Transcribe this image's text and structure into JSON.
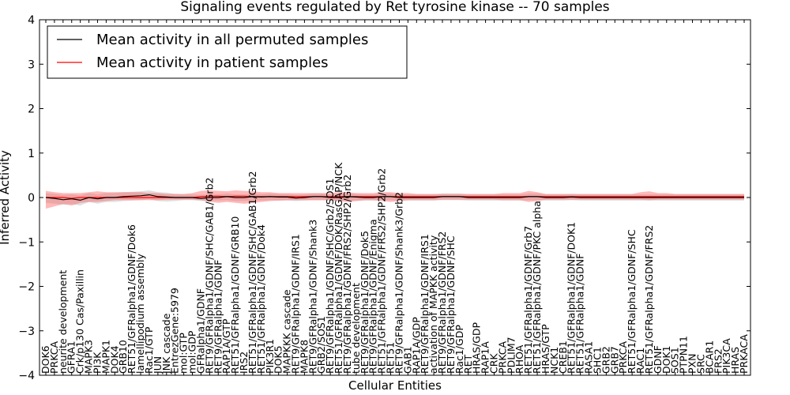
{
  "chart_data": {
    "type": "line",
    "title": "Signaling events regulated by Ret tyrosine kinase -- 70 samples",
    "xlabel": "Cellular Entities",
    "ylabel": "Inferred Activity",
    "ylim": [
      -4,
      4
    ],
    "yticks": [
      -4,
      -3,
      -2,
      -1,
      0,
      1,
      2,
      3,
      4
    ],
    "grid": false,
    "legend_position": "top-left",
    "legend": [
      {
        "label": "Mean activity in all permuted samples",
        "color": "#000000"
      },
      {
        "label": "Mean activity in patient samples",
        "color": "#ff0000"
      }
    ],
    "categories": [
      "DOK6",
      "PRKCA",
      "neurite development",
      "GFRA1",
      "Crk/p130 Cas/Paxillin",
      "MAPK3",
      "PI3K",
      "MAPK1",
      "DOK4",
      "GRB10",
      "RET51/GFRalpha1/GDNF/Dok6",
      "lamellipodium assembly",
      "Rac1/GTP",
      "JUN",
      "JNK cascade",
      "EntrezGene:5979",
      "mol:GTP",
      "mol:GDP",
      "GFRalpha1/GDNF",
      "RET9/GFRalpha1/GDNF/SHC/GAB1/Grb2",
      "RET9/GFRalpha1/GDNF",
      "RAP1A/GTP",
      "RET51/GFRalpha1/GDNF/GRB10",
      "IRS2",
      "RET51/GFRalpha1/GDNF/SHC/GAB1/Grb2",
      "RET51/GFRalpha1/GDNF/Dok4",
      "PIK3R1",
      "DOK5",
      "MAPKKK cascade",
      "RET9/GFRalpha1/GDNF/IRS1",
      "MAPK8",
      "RET9/GFRalpha1/GDNF/Shank3",
      "GRB2/SOS1",
      "RET9/GFRalpha1/GDNF/SHC/Grb2/SOS1",
      "RET51/GFRalpha1/GDNF/DOK/RasGAP/NCK",
      "RET9/GFRalpha1/GDNF/FRS2/SHP2/Grb2",
      "tube development",
      "RET9/GFRalpha1/GDNF/Dok5",
      "RET9/GFRalpha1/GDNF/Enigma",
      "RET51/GFRalpha1/GDNF/FRS2/SHP2/Grb2",
      "RET51",
      "RET9/GFRalpha1/GDNF/Shank3/Grb2",
      "GAB1",
      "RAP1A/GDP",
      "RET9/GFRalpha1/GDNF/IRS1",
      "activation of MAPKK activity",
      "RET9/GFRalpha1/GDNF/FRS2",
      "RET9/GFRalpha1/GDNF/SHC",
      "Rac1/GDP",
      "RET",
      "HRAS/GDP",
      "RAP1A",
      "CRK",
      "PRKCA",
      "PDLIM7",
      "RHOA",
      "RET51/GFRalpha1/GDNF/Grb7",
      "RET51/GFRalpha1/GDNF/PKC alpha",
      "HRAS/GTP",
      "NCK1",
      "CREB1",
      "RET51/GFRalpha1/GDNF/DOK1",
      "RET51/GFRalpha1/GDNF",
      "RASA1",
      "SHC1",
      "GRB2",
      "GRB7",
      "PRKCA",
      "RET51/GFRalpha1/GDNF/SHC",
      "RAC1",
      "RET51/GFRalpha1/GDNF/FRS2",
      "GDNF",
      "DOK1",
      "SOS1",
      "PTPN11",
      "PXN",
      "SRC",
      "BCAR1",
      "FRS2",
      "PIK3CA",
      "HRAS",
      "PRKACA"
    ],
    "series": [
      {
        "name": "Mean activity in all permuted samples",
        "color": "#000000",
        "values": [
          0.0,
          -0.02,
          -0.05,
          -0.03,
          -0.06,
          0.0,
          -0.03,
          0.0,
          0.0,
          0.02,
          0.03,
          0.04,
          0.06,
          0.02,
          0.01,
          0.0,
          0.0,
          0.0,
          -0.02,
          0.0,
          0.0,
          0.02,
          0.0,
          0.0,
          0.02,
          0.01,
          0.02,
          0.01,
          0.01,
          -0.01,
          0.0,
          0.02,
          0.02,
          0.0,
          0.0,
          0.02,
          0.01,
          0.0,
          0.0,
          0.02,
          0.02,
          0.0,
          0.0,
          0.0,
          0.0,
          0.0,
          0.02,
          0.02,
          0.02,
          0.0,
          0.0,
          0.0,
          0.0,
          0.0,
          0.0,
          0.0,
          0.02,
          0.02,
          0.0,
          0.0,
          0.0,
          0.01,
          0.0,
          0.0,
          0.0,
          0.0,
          0.0,
          0.0,
          0.0,
          0.0,
          0.0,
          0.0,
          0.0,
          0.0,
          0.0,
          0.0,
          0.0,
          0.0,
          0.0,
          0.0,
          0.0,
          0.0
        ],
        "band_low": [
          -0.12,
          -0.14,
          -0.16,
          -0.15,
          -0.18,
          -0.1,
          -0.14,
          -0.1,
          -0.1,
          -0.08,
          -0.07,
          -0.06,
          -0.04,
          -0.08,
          -0.09,
          -0.08,
          -0.06,
          -0.06,
          -0.08,
          -0.07,
          -0.07,
          -0.06,
          -0.08,
          -0.08,
          -0.06,
          -0.07,
          -0.06,
          -0.07,
          -0.07,
          -0.08,
          -0.07,
          -0.06,
          -0.06,
          -0.07,
          -0.07,
          -0.06,
          -0.07,
          -0.07,
          -0.07,
          -0.06,
          -0.06,
          -0.07,
          -0.07,
          -0.07,
          -0.07,
          -0.07,
          -0.06,
          -0.06,
          -0.06,
          -0.07,
          -0.07,
          -0.07,
          -0.07,
          -0.07,
          -0.07,
          -0.07,
          -0.06,
          -0.06,
          -0.07,
          -0.07,
          -0.07,
          -0.06,
          -0.07,
          -0.07,
          -0.07,
          -0.07,
          -0.07,
          -0.07,
          -0.07,
          -0.07,
          -0.07,
          -0.07,
          -0.07,
          -0.07,
          -0.07,
          -0.07,
          -0.07,
          -0.07,
          -0.07,
          -0.07,
          -0.07,
          -0.07
        ],
        "band_high": [
          0.1,
          0.08,
          0.06,
          0.07,
          0.05,
          0.1,
          0.07,
          0.1,
          0.1,
          0.12,
          0.13,
          0.14,
          0.16,
          0.12,
          0.11,
          0.08,
          0.07,
          0.07,
          0.06,
          0.07,
          0.07,
          0.09,
          0.07,
          0.07,
          0.09,
          0.08,
          0.09,
          0.08,
          0.08,
          0.06,
          0.07,
          0.09,
          0.09,
          0.07,
          0.07,
          0.09,
          0.08,
          0.07,
          0.07,
          0.09,
          0.09,
          0.07,
          0.07,
          0.07,
          0.07,
          0.07,
          0.09,
          0.09,
          0.09,
          0.07,
          0.07,
          0.07,
          0.07,
          0.07,
          0.07,
          0.07,
          0.09,
          0.09,
          0.07,
          0.07,
          0.07,
          0.08,
          0.07,
          0.07,
          0.07,
          0.07,
          0.07,
          0.07,
          0.07,
          0.07,
          0.07,
          0.07,
          0.07,
          0.07,
          0.07,
          0.07,
          0.07,
          0.07,
          0.07,
          0.07,
          0.07,
          0.07
        ]
      },
      {
        "name": "Mean activity in patient samples",
        "color": "#ff0000",
        "values": [
          0.0,
          0.0,
          0.0,
          -0.02,
          0.0,
          0.0,
          0.0,
          0.0,
          0.0,
          0.0,
          0.0,
          0.0,
          0.0,
          0.0,
          0.0,
          0.0,
          0.0,
          0.0,
          0.02,
          0.03,
          0.03,
          0.02,
          0.03,
          0.03,
          0.02,
          0.02,
          0.02,
          0.02,
          0.02,
          0.02,
          0.02,
          0.02,
          0.02,
          0.02,
          0.02,
          0.02,
          0.02,
          0.02,
          0.02,
          0.02,
          0.02,
          0.02,
          0.02,
          0.02,
          0.02,
          0.02,
          0.02,
          0.02,
          0.02,
          0.02,
          0.02,
          0.02,
          0.02,
          0.02,
          0.02,
          0.02,
          0.02,
          0.02,
          0.02,
          0.02,
          0.02,
          0.02,
          0.02,
          0.02,
          0.02,
          0.02,
          0.02,
          0.02,
          0.02,
          0.02,
          0.02,
          0.02,
          0.02,
          0.02,
          0.02,
          0.02,
          0.02,
          0.02,
          0.02,
          0.02,
          0.02,
          0.02
        ],
        "band_low": [
          -0.25,
          -0.2,
          -0.15,
          -0.18,
          -0.12,
          -0.1,
          -0.1,
          -0.08,
          -0.06,
          -0.06,
          -0.06,
          -0.06,
          -0.06,
          -0.06,
          -0.05,
          -0.05,
          -0.05,
          -0.05,
          -0.06,
          -0.1,
          -0.12,
          -0.1,
          -0.12,
          -0.14,
          -0.12,
          -0.1,
          -0.08,
          -0.07,
          -0.06,
          -0.06,
          -0.06,
          -0.06,
          -0.06,
          -0.06,
          -0.08,
          -0.1,
          -0.08,
          -0.06,
          -0.06,
          -0.08,
          -0.1,
          -0.08,
          -0.06,
          -0.06,
          -0.06,
          -0.06,
          -0.05,
          -0.05,
          -0.05,
          -0.05,
          -0.05,
          -0.05,
          -0.05,
          -0.06,
          -0.06,
          -0.06,
          -0.1,
          -0.08,
          -0.05,
          -0.05,
          -0.05,
          -0.05,
          -0.05,
          -0.05,
          -0.05,
          -0.05,
          -0.05,
          -0.05,
          -0.05,
          -0.05,
          -0.06,
          -0.05,
          -0.05,
          -0.05,
          -0.05,
          -0.05,
          -0.05,
          -0.05,
          -0.05,
          -0.05,
          -0.05,
          -0.05
        ],
        "band_high": [
          0.15,
          0.12,
          0.1,
          0.1,
          0.1,
          0.12,
          0.14,
          0.12,
          0.12,
          0.12,
          0.12,
          0.12,
          0.1,
          0.1,
          0.08,
          0.08,
          0.08,
          0.1,
          0.15,
          0.16,
          0.15,
          0.14,
          0.16,
          0.15,
          0.14,
          0.12,
          0.12,
          0.1,
          0.1,
          0.1,
          0.1,
          0.1,
          0.1,
          0.1,
          0.12,
          0.12,
          0.1,
          0.1,
          0.1,
          0.12,
          0.12,
          0.1,
          0.1,
          0.08,
          0.08,
          0.08,
          0.08,
          0.08,
          0.08,
          0.08,
          0.08,
          0.08,
          0.08,
          0.1,
          0.1,
          0.1,
          0.15,
          0.12,
          0.08,
          0.08,
          0.08,
          0.08,
          0.08,
          0.08,
          0.08,
          0.08,
          0.08,
          0.08,
          0.08,
          0.12,
          0.14,
          0.1,
          0.1,
          0.08,
          0.08,
          0.08,
          0.08,
          0.08,
          0.08,
          0.08,
          0.08,
          0.08
        ]
      }
    ]
  }
}
